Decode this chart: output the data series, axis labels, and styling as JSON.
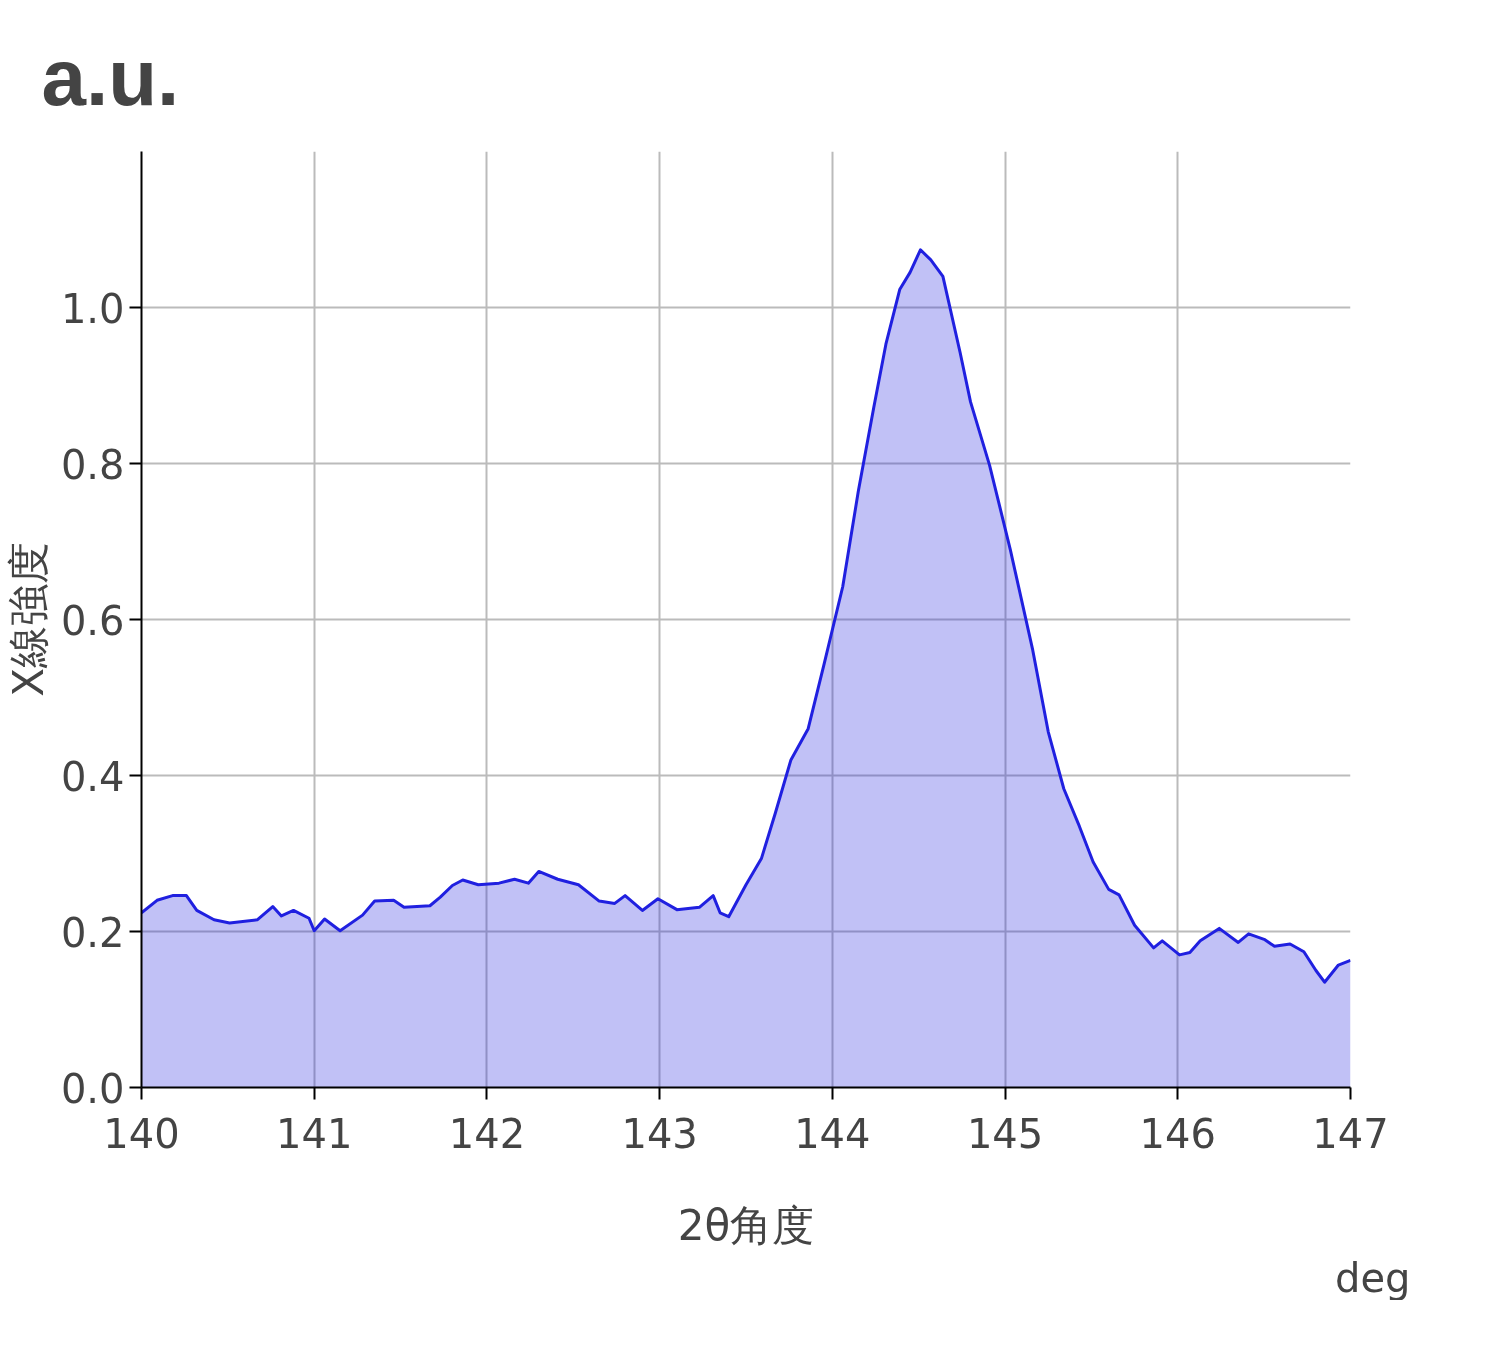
{
  "chart_data": {
    "type": "area",
    "title": "a.u.",
    "xlabel": "2θ角度",
    "ylabel": "X線強度",
    "annotations": [
      "deg"
    ],
    "x": [
      140,
      140.09,
      140.18,
      140.26,
      140.32,
      140.42,
      140.51,
      140.67,
      140.76,
      140.81,
      140.88,
      140.97,
      141.0,
      141.06,
      141.15,
      141.28,
      141.35,
      141.46,
      141.52,
      141.67,
      141.73,
      141.8,
      141.86,
      141.95,
      142.07,
      142.16,
      142.24,
      142.3,
      142.41,
      142.53,
      142.65,
      142.74,
      142.8,
      142.9,
      142.99,
      143.1,
      143.23,
      143.31,
      143.35,
      143.4,
      143.5,
      143.59,
      143.67,
      143.76,
      143.86,
      143.95,
      144.06,
      144.15,
      144.24,
      144.31,
      144.39,
      144.45,
      144.51,
      144.57,
      144.64,
      144.74,
      144.8,
      144.91,
      145.03,
      145.16,
      145.25,
      145.34,
      145.43,
      145.51,
      145.6,
      145.66,
      145.75,
      145.86,
      145.91,
      146.01,
      146.07,
      146.13,
      146.24,
      146.35,
      146.41,
      146.5,
      146.56,
      146.65,
      146.73,
      146.8,
      146.85,
      146.93,
      147
    ],
    "series": [
      {
        "color": "#2020e0",
        "values": [
          0.224,
          0.24,
          0.246,
          0.246,
          0.227,
          0.215,
          0.211,
          0.215,
          0.232,
          0.22,
          0.227,
          0.217,
          0.201,
          0.216,
          0.201,
          0.221,
          0.239,
          0.24,
          0.231,
          0.233,
          0.244,
          0.259,
          0.266,
          0.26,
          0.262,
          0.267,
          0.262,
          0.277,
          0.267,
          0.26,
          0.239,
          0.236,
          0.246,
          0.227,
          0.242,
          0.228,
          0.231,
          0.246,
          0.224,
          0.219,
          0.26,
          0.294,
          0.352,
          0.42,
          0.46,
          0.541,
          0.642,
          0.764,
          0.872,
          0.953,
          1.023,
          1.045,
          1.074,
          1.061,
          1.04,
          0.942,
          0.879,
          0.798,
          0.69,
          0.561,
          0.456,
          0.383,
          0.335,
          0.289,
          0.254,
          0.247,
          0.208,
          0.179,
          0.188,
          0.17,
          0.173,
          0.188,
          0.204,
          0.186,
          0.197,
          0.19,
          0.181,
          0.184,
          0.174,
          0.15,
          0.135,
          0.157,
          0.163
        ]
      }
    ],
    "xlim": [
      140,
      147
    ],
    "xticks": [
      140,
      141,
      142,
      143,
      144,
      145,
      146,
      147
    ],
    "ylim": [
      0,
      1.2
    ],
    "yticks": [
      {
        "value": 0,
        "label": "0.0"
      },
      0.2,
      0.4,
      0.6,
      0.8,
      {
        "value": 1,
        "label": "1.0"
      }
    ],
    "grid": true
  }
}
